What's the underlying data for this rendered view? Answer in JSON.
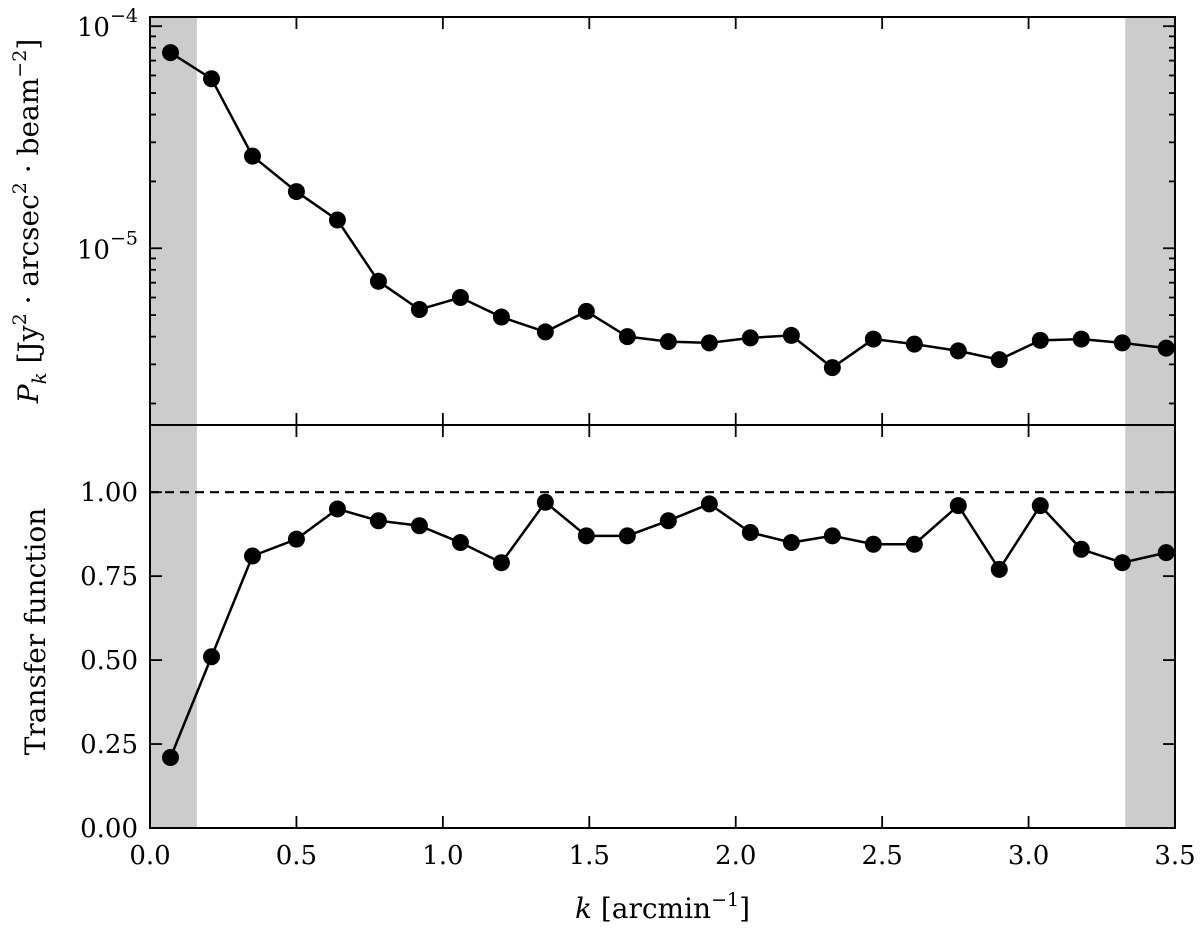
{
  "chart_data": [
    {
      "type": "line",
      "panel": "top",
      "yscale": "log",
      "ylim": [
        1.6e-06,
        0.00011
      ],
      "xlim": [
        0.0,
        3.5
      ],
      "ylabel_parts": {
        "main": "P",
        "sub": "k",
        "unit_open": " [Jy",
        "sup1": "2",
        "mid": " · arcsec",
        "sup2": "2",
        "mid2": " · beam",
        "sup3": "−2",
        "unit_close": "]"
      },
      "yticks": [
        {
          "value": 0.0001,
          "base": "10",
          "exp": "−4"
        },
        {
          "value": 1e-05,
          "base": "10",
          "exp": "−5"
        }
      ],
      "shaded_x_ranges": [
        [
          0.0,
          0.16
        ],
        [
          3.33,
          3.5
        ]
      ],
      "series": [
        {
          "x": [
            0.07,
            0.21,
            0.35,
            0.5,
            0.64,
            0.78,
            0.92,
            1.06,
            1.2,
            1.35,
            1.49,
            1.63,
            1.77,
            1.91,
            2.05,
            2.19,
            2.33,
            2.47,
            2.61,
            2.76,
            2.9,
            3.04,
            3.18,
            3.32,
            3.47
          ],
          "y": [
            7.6e-05,
            5.8e-05,
            2.6e-05,
            1.8e-05,
            1.34e-05,
            7.1e-06,
            5.3e-06,
            6e-06,
            4.9e-06,
            4.2e-06,
            5.2e-06,
            4e-06,
            3.8e-06,
            3.75e-06,
            3.95e-06,
            4.05e-06,
            2.9e-06,
            3.9e-06,
            3.7e-06,
            3.45e-06,
            3.15e-06,
            3.85e-06,
            3.9e-06,
            3.75e-06,
            3.55e-06
          ]
        }
      ]
    },
    {
      "type": "line",
      "panel": "bottom",
      "yscale": "linear",
      "ylim": [
        0.0,
        1.2
      ],
      "xlim": [
        0.0,
        3.5
      ],
      "xlabel_parts": {
        "main": "k",
        "unit_open": " [arcmin",
        "sup": "−1",
        "unit_close": "]"
      },
      "ylabel": "Transfer function",
      "yticks": [
        0.0,
        0.25,
        0.5,
        0.75,
        1.0
      ],
      "ytick_labels": [
        "0.00",
        "0.25",
        "0.50",
        "0.75",
        "1.00"
      ],
      "xticks": [
        0.0,
        0.5,
        1.0,
        1.5,
        2.0,
        2.5,
        3.0,
        3.5
      ],
      "xtick_labels": [
        "0.0",
        "0.5",
        "1.0",
        "1.5",
        "2.0",
        "2.5",
        "3.0",
        "3.5"
      ],
      "reference_line_y": 1.0,
      "shaded_x_ranges": [
        [
          0.0,
          0.16
        ],
        [
          3.33,
          3.5
        ]
      ],
      "series": [
        {
          "x": [
            0.07,
            0.21,
            0.35,
            0.5,
            0.64,
            0.78,
            0.92,
            1.06,
            1.2,
            1.35,
            1.49,
            1.63,
            1.77,
            1.91,
            2.05,
            2.19,
            2.33,
            2.47,
            2.61,
            2.76,
            2.9,
            3.04,
            3.18,
            3.32,
            3.47
          ],
          "y": [
            0.21,
            0.51,
            0.81,
            0.86,
            0.95,
            0.915,
            0.9,
            0.85,
            0.79,
            0.97,
            0.87,
            0.87,
            0.915,
            0.965,
            0.88,
            0.85,
            0.87,
            0.845,
            0.845,
            0.96,
            0.77,
            0.96,
            0.83,
            0.79,
            0.82
          ]
        }
      ]
    }
  ]
}
